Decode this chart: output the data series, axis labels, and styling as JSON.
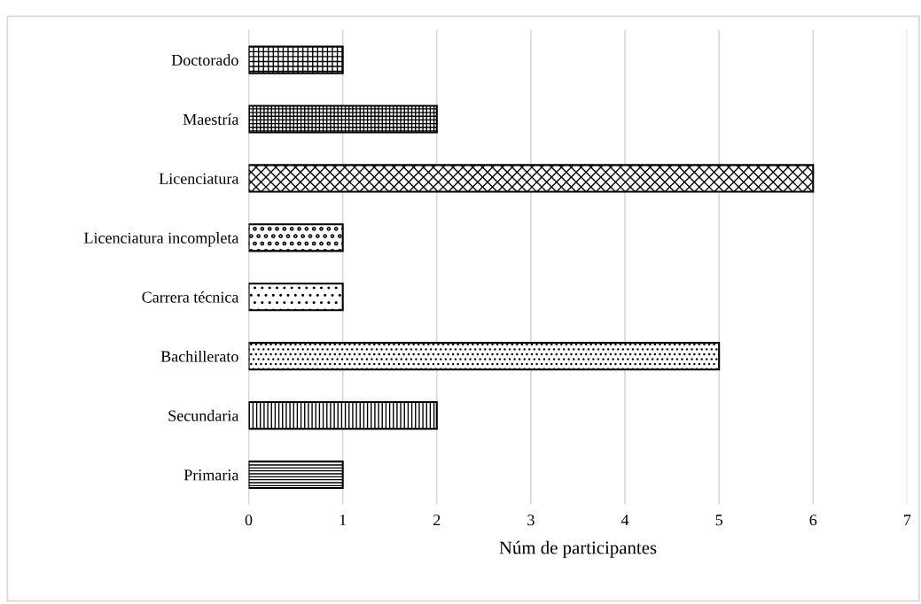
{
  "chart_data": {
    "type": "bar",
    "orientation": "horizontal",
    "xlabel": "Núm de participantes",
    "categories": [
      "Doctorado",
      "Maestría",
      "Licenciatura",
      "Licenciatura incompleta",
      "Carrera técnica",
      "Bachillerato",
      "Secundaria",
      "Primaria"
    ],
    "values": [
      1,
      2,
      6,
      1,
      1,
      5,
      2,
      1
    ],
    "color": "#000000",
    "xlim": [
      0,
      7
    ],
    "xticks": [
      0,
      1,
      2,
      3,
      4,
      5,
      6,
      7
    ],
    "grid": "x",
    "legend": false
  }
}
